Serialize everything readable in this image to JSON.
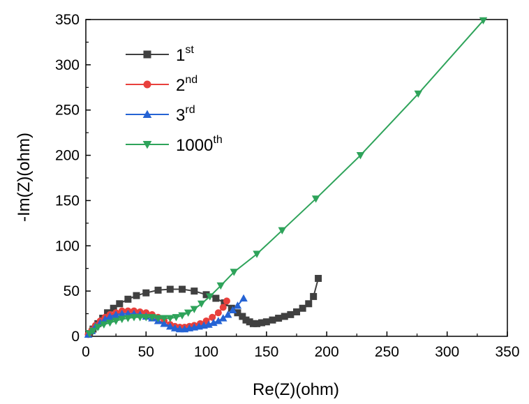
{
  "chart_data": {
    "type": "line",
    "xlabel": "Re(Z)(ohm)",
    "ylabel": "-Im(Z)(ohm)",
    "xlim": [
      0,
      350
    ],
    "ylim": [
      0,
      350
    ],
    "xticks": [
      0,
      50,
      100,
      150,
      200,
      250,
      300,
      350
    ],
    "yticks": [
      0,
      50,
      100,
      150,
      200,
      250,
      300,
      350
    ],
    "grid": false,
    "legend_position": "top-left",
    "series": [
      {
        "name": "1",
        "sup": "st",
        "color": "#404040",
        "marker": "square",
        "x": [
          3,
          6,
          10,
          14,
          18,
          23,
          28,
          35,
          42,
          50,
          60,
          70,
          80,
          90,
          100,
          108,
          115,
          121,
          126,
          130,
          133,
          136,
          139,
          142,
          146,
          150,
          155,
          160,
          165,
          170,
          175,
          180,
          185,
          189,
          193
        ],
        "y": [
          3,
          8,
          14,
          20,
          26,
          31,
          36,
          41,
          45,
          48,
          51,
          52,
          52,
          50,
          46,
          42,
          37,
          31,
          26,
          22,
          18,
          16,
          14,
          14,
          15,
          16,
          18,
          20,
          22,
          24,
          27,
          31,
          36,
          44,
          64
        ]
      },
      {
        "name": "2",
        "sup": "nd",
        "color": "#e8403c",
        "marker": "circle",
        "x": [
          2,
          5,
          8,
          12,
          16,
          20,
          25,
          30,
          35,
          40,
          45,
          50,
          55,
          60,
          65,
          70,
          74,
          78,
          82,
          86,
          90,
          95,
          100,
          105,
          110,
          114,
          117
        ],
        "y": [
          2,
          7,
          12,
          17,
          21,
          24,
          26,
          28,
          28,
          28,
          27,
          26,
          24,
          21,
          17,
          13,
          11,
          10,
          10,
          11,
          12,
          14,
          17,
          21,
          26,
          32,
          39
        ]
      },
      {
        "name": "3",
        "sup": "rd",
        "color": "#2563d4",
        "marker": "triangle-up",
        "x": [
          2,
          5,
          8,
          12,
          16,
          20,
          25,
          30,
          35,
          40,
          45,
          50,
          55,
          60,
          65,
          70,
          74,
          78,
          82,
          86,
          90,
          94,
          98,
          102,
          106,
          110,
          114,
          118,
          122,
          126,
          131
        ],
        "y": [
          2,
          6,
          11,
          15,
          19,
          22,
          24,
          25,
          25,
          25,
          24,
          22,
          20,
          17,
          14,
          11,
          9,
          8,
          8,
          9,
          10,
          11,
          12,
          13,
          15,
          17,
          20,
          24,
          29,
          34,
          42
        ]
      },
      {
        "name": "1000",
        "sup": "th",
        "color": "#2ea35a",
        "marker": "triangle-down",
        "x": [
          3,
          6,
          10,
          15,
          20,
          25,
          30,
          35,
          40,
          45,
          50,
          55,
          60,
          65,
          70,
          75,
          80,
          85,
          90,
          96,
          103,
          112,
          123,
          142,
          163,
          191,
          228,
          276,
          330
        ],
        "y": [
          3,
          6,
          10,
          13,
          15,
          17,
          19,
          20,
          21,
          21,
          21,
          21,
          20,
          20,
          20,
          21,
          23,
          26,
          30,
          36,
          44,
          56,
          71,
          91,
          117,
          152,
          200,
          268,
          349
        ]
      }
    ]
  }
}
